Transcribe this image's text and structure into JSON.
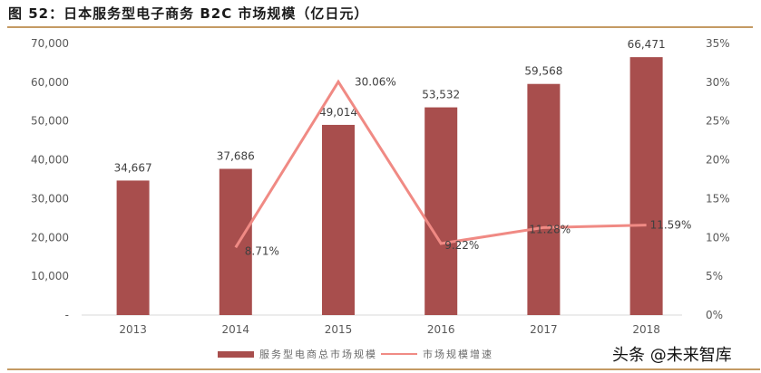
{
  "header": {
    "title": "图 52：日本服务型电子商务 B2C 市场规模（亿日元）"
  },
  "colors": {
    "bar": "#a84e4d",
    "line": "#f08a84",
    "rule": "#c49a63",
    "axis_text": "#595959"
  },
  "legend": {
    "bar_label": "服务型电商总市场规模",
    "line_label": "市场规模增速"
  },
  "watermark": "头条 @未来智库",
  "chart_data": {
    "type": "bar+line",
    "title": "图 52：日本服务型电子商务 B2C 市场规模（亿日元）",
    "categories": [
      "2013",
      "2014",
      "2015",
      "2016",
      "2017",
      "2018"
    ],
    "series": [
      {
        "name": "服务型电商总市场规模",
        "type": "bar",
        "axis": "left",
        "values": [
          34667,
          37686,
          49014,
          53532,
          59568,
          66471
        ],
        "labels": [
          "34,667",
          "37,686",
          "49,014",
          "53,532",
          "59,568",
          "66,471"
        ]
      },
      {
        "name": "市场规模增速",
        "type": "line",
        "axis": "right",
        "values": [
          null,
          8.71,
          30.06,
          9.22,
          11.28,
          11.59
        ],
        "labels": [
          "",
          "8.71%",
          "30.06%",
          "9.22%",
          "11.28%",
          "11.59%"
        ]
      }
    ],
    "left_axis": {
      "ylim": [
        0,
        70000
      ],
      "ticks": [
        "-",
        "10,000",
        "20,000",
        "30,000",
        "40,000",
        "50,000",
        "60,000",
        "70,000"
      ]
    },
    "right_axis": {
      "ylim": [
        0,
        35
      ],
      "ticks": [
        "0%",
        "5%",
        "10%",
        "15%",
        "20%",
        "25%",
        "30%",
        "35%"
      ]
    },
    "grid": false,
    "legend_position": "bottom"
  }
}
